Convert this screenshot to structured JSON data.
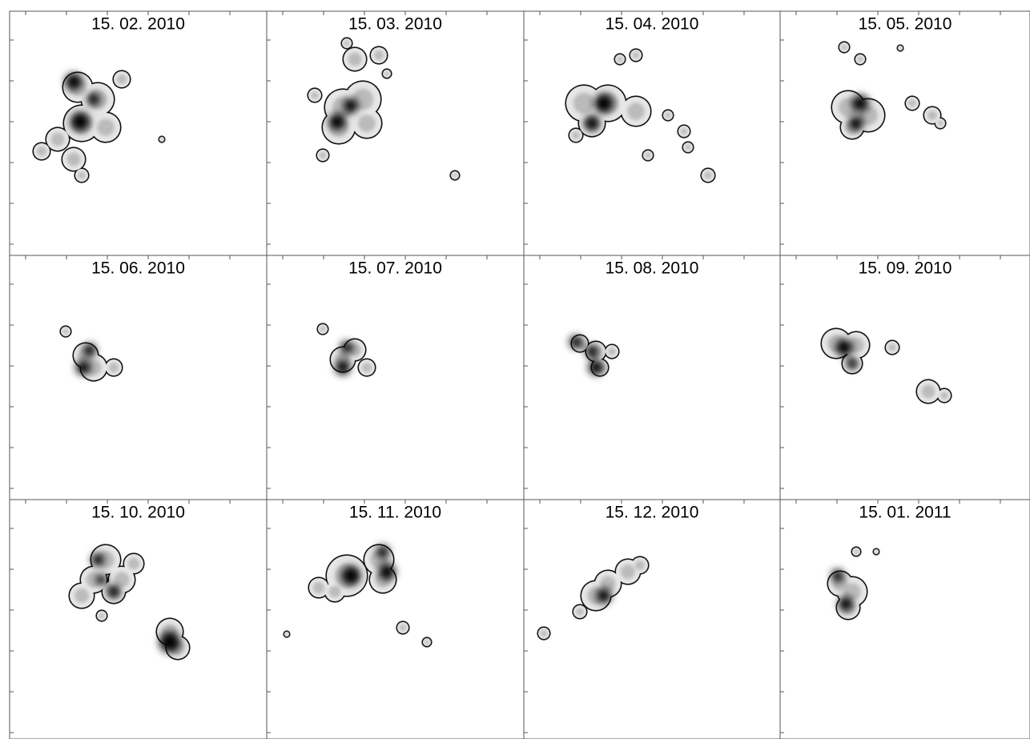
{
  "panels": [
    {
      "title": "15. 02. 2010"
    },
    {
      "title": "15. 03. 2010"
    },
    {
      "title": "15. 04. 2010"
    },
    {
      "title": "15. 05. 2010"
    },
    {
      "title": "15. 06. 2010"
    },
    {
      "title": "15. 07. 2010"
    },
    {
      "title": "15. 08. 2010"
    },
    {
      "title": "15. 09. 2010"
    },
    {
      "title": "15. 10. 2010"
    },
    {
      "title": "15. 11. 2010"
    },
    {
      "title": "15. 12. 2010"
    },
    {
      "title": "15. 01. 2011"
    }
  ]
}
